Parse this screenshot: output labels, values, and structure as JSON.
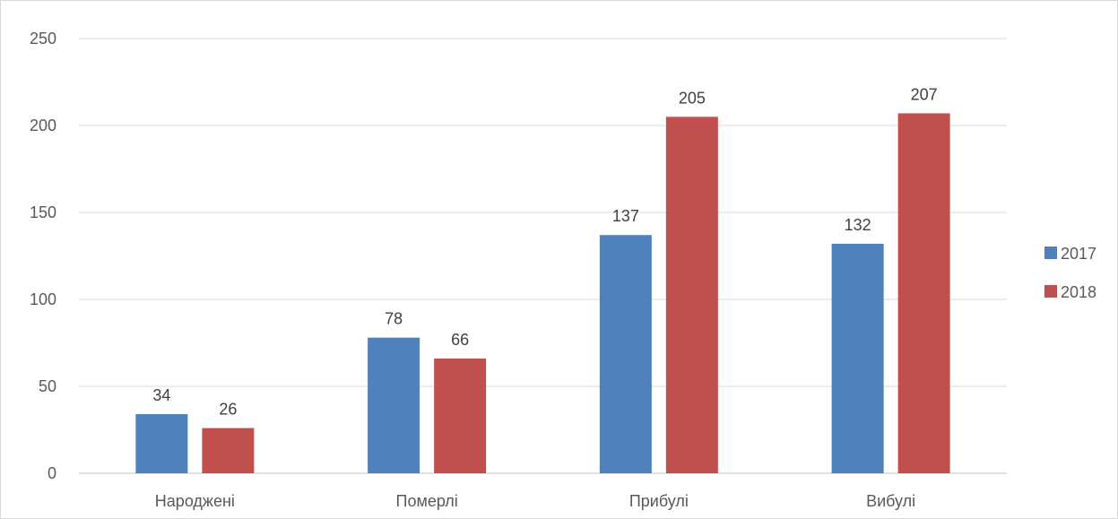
{
  "chart_data": {
    "type": "bar",
    "categories": [
      "Народжені",
      "Померлі",
      "Прибулі",
      "Вибулі"
    ],
    "series": [
      {
        "name": "2017",
        "values": [
          34,
          78,
          137,
          132
        ],
        "color": "#4f81bd"
      },
      {
        "name": "2018",
        "values": [
          26,
          66,
          205,
          207
        ],
        "color": "#c0504d"
      }
    ],
    "ylim": [
      0,
      250
    ],
    "yticks": [
      0,
      50,
      100,
      150,
      200,
      250
    ],
    "grid": true,
    "legend": "right",
    "data_labels": true
  }
}
